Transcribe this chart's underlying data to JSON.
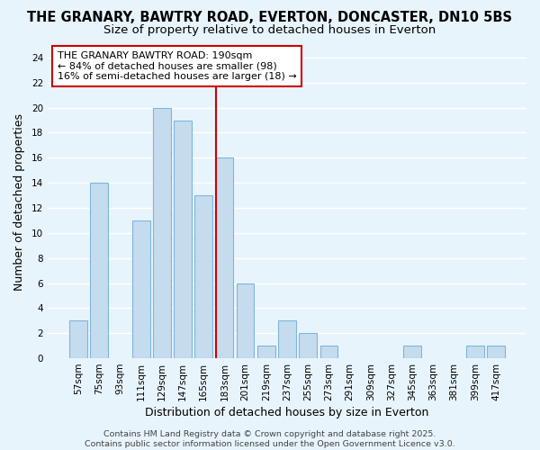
{
  "title": "THE GRANARY, BAWTRY ROAD, EVERTON, DONCASTER, DN10 5BS",
  "subtitle": "Size of property relative to detached houses in Everton",
  "xlabel": "Distribution of detached houses by size in Everton",
  "ylabel": "Number of detached properties",
  "categories": [
    "57sqm",
    "75sqm",
    "93sqm",
    "111sqm",
    "129sqm",
    "147sqm",
    "165sqm",
    "183sqm",
    "201sqm",
    "219sqm",
    "237sqm",
    "255sqm",
    "273sqm",
    "291sqm",
    "309sqm",
    "327sqm",
    "345sqm",
    "363sqm",
    "381sqm",
    "399sqm",
    "417sqm"
  ],
  "values": [
    3,
    14,
    0,
    11,
    20,
    19,
    13,
    16,
    6,
    1,
    3,
    2,
    1,
    0,
    0,
    0,
    1,
    0,
    0,
    1,
    1
  ],
  "highlight_index": 7,
  "bar_color": "#c5dcee",
  "bar_edge_color": "#7eb6d9",
  "highlight_line_color": "#cc0000",
  "annotation_text": "THE GRANARY BAWTRY ROAD: 190sqm\n← 84% of detached houses are smaller (98)\n16% of semi-detached houses are larger (18) →",
  "annotation_box_color": "#ffffff",
  "annotation_box_edge": "#cc0000",
  "ylim": [
    0,
    25
  ],
  "yticks": [
    0,
    2,
    4,
    6,
    8,
    10,
    12,
    14,
    16,
    18,
    20,
    22,
    24
  ],
  "footer": "Contains HM Land Registry data © Crown copyright and database right 2025.\nContains public sector information licensed under the Open Government Licence v3.0.",
  "bg_color": "#e8f4fc",
  "grid_color": "#ffffff",
  "title_fontsize": 10.5,
  "subtitle_fontsize": 9.5,
  "tick_fontsize": 7.5,
  "label_fontsize": 9,
  "footer_fontsize": 6.8
}
